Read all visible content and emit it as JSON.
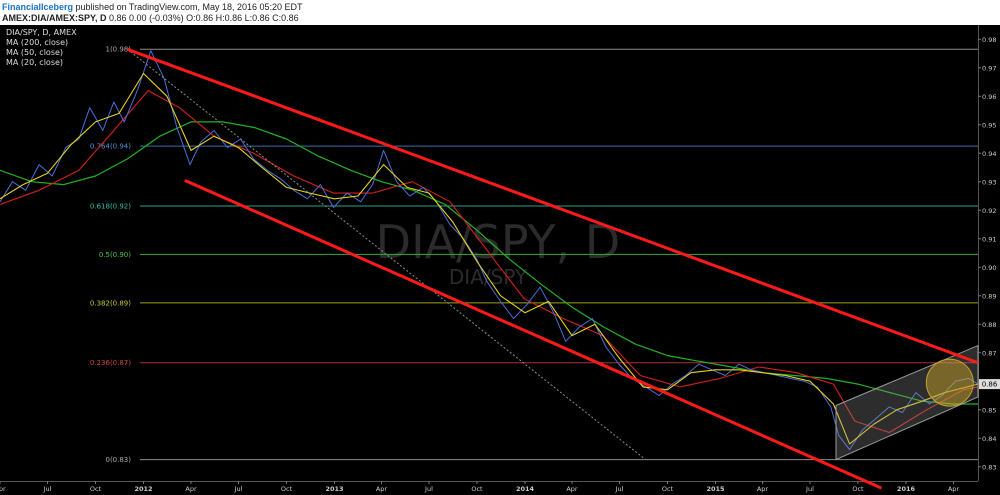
{
  "header": {
    "author": "FinancialIceberg",
    "published": "published on TradingView.com, May 18, 2016 05:20 EDT",
    "symbol": "AMEX:DIA/AMEX:SPY, D",
    "ohlc": "0.86 0.00 (-0.03%) O:0.86 H:0.86 L:0.86 C:0.86"
  },
  "legend": {
    "symbol_line": "DIA/SPY, D, AMEX",
    "ma200": "MA (200, close)",
    "ma50": "MA (50, close)",
    "ma20": "MA (20, close)"
  },
  "watermark": {
    "main": "DIA/SPY, D",
    "sub": "DIA/SPY"
  },
  "last_price_badge": "0.86",
  "colors": {
    "background": "#000000",
    "price": "#4a6fd8",
    "ma200": "#22b322",
    "ma50": "#d61f1f",
    "ma20": "#e6d21a",
    "channel": "#ff1a1a",
    "fib_0": "#8c8c8c",
    "fib_0236": "#a83232",
    "fib_0382": "#9aa21e",
    "fib_05": "#38a838",
    "fib_0618": "#2aa08a",
    "fib_0764": "#3a6ea8",
    "fib_1": "#8c8c8c"
  },
  "chart_data": {
    "type": "line",
    "y_axis": {
      "range": [
        0.825,
        0.985
      ],
      "ticks": [
        "0.98",
        "0.97",
        "0.96",
        "0.95",
        "0.94",
        "0.93",
        "0.92",
        "0.91",
        "0.90",
        "0.89",
        "0.88",
        "0.87",
        "0.86",
        "0.85",
        "0.84",
        "0.83"
      ]
    },
    "x_axis": {
      "range": [
        "2011-04-01",
        "2016-05-18"
      ],
      "ticks": [
        {
          "label": "Apr",
          "date": "2011-04-01",
          "bold": false
        },
        {
          "label": "Jul",
          "date": "2011-07-01",
          "bold": false
        },
        {
          "label": "Oct",
          "date": "2011-10-01",
          "bold": false
        },
        {
          "label": "2012",
          "date": "2012-01-01",
          "bold": true
        },
        {
          "label": "Apr",
          "date": "2012-04-01",
          "bold": false
        },
        {
          "label": "Jul",
          "date": "2012-07-01",
          "bold": false
        },
        {
          "label": "Oct",
          "date": "2012-10-01",
          "bold": false
        },
        {
          "label": "2013",
          "date": "2013-01-01",
          "bold": true
        },
        {
          "label": "Apr",
          "date": "2013-04-01",
          "bold": false
        },
        {
          "label": "Jul",
          "date": "2013-07-01",
          "bold": false
        },
        {
          "label": "Oct",
          "date": "2013-10-01",
          "bold": false
        },
        {
          "label": "2014",
          "date": "2014-01-01",
          "bold": true
        },
        {
          "label": "Apr",
          "date": "2014-04-01",
          "bold": false
        },
        {
          "label": "Jul",
          "date": "2014-07-01",
          "bold": false
        },
        {
          "label": "Oct",
          "date": "2014-10-01",
          "bold": false
        },
        {
          "label": "2015",
          "date": "2015-01-01",
          "bold": true
        },
        {
          "label": "Apr",
          "date": "2015-04-01",
          "bold": false
        },
        {
          "label": "Jul",
          "date": "2015-07-01",
          "bold": false
        },
        {
          "label": "Oct",
          "date": "2015-10-01",
          "bold": false
        },
        {
          "label": "2016",
          "date": "2016-01-01",
          "bold": true
        },
        {
          "label": "Apr",
          "date": "2016-04-01",
          "bold": false
        }
      ]
    },
    "fib_levels": [
      {
        "label": "1(0.98)",
        "value": 0.9765,
        "color": "#8c8c8c",
        "labelColor": "#aaaaaa"
      },
      {
        "label": "0.764(0.94)",
        "value": 0.9425,
        "color": "#3a6ea8",
        "labelColor": "#4f8fd0"
      },
      {
        "label": "0.618(0.92)",
        "value": 0.9215,
        "color": "#2aa08a",
        "labelColor": "#34c0a4"
      },
      {
        "label": "0.5(0.90)",
        "value": 0.9045,
        "color": "#38a838",
        "labelColor": "#4cc44c"
      },
      {
        "label": "0.382(0.89)",
        "value": 0.8875,
        "color": "#9aa21e",
        "labelColor": "#c4cc2a"
      },
      {
        "label": "0.236(0.87)",
        "value": 0.8665,
        "color": "#a83232",
        "labelColor": "#d04646"
      },
      {
        "label": "0(0.83)",
        "value": 0.8325,
        "color": "#8c8c8c",
        "labelColor": "#aaaaaa"
      }
    ],
    "series": [
      {
        "name": "DIA/SPY",
        "key": "price",
        "x": [
          "2011-04-01",
          "2011-04-25",
          "2011-05-20",
          "2011-06-15",
          "2011-07-10",
          "2011-08-05",
          "2011-08-30",
          "2011-09-20",
          "2011-10-15",
          "2011-11-05",
          "2011-11-25",
          "2011-12-20",
          "2012-01-15",
          "2012-02-10",
          "2012-03-05",
          "2012-03-30",
          "2012-04-20",
          "2012-05-15",
          "2012-06-10",
          "2012-07-05",
          "2012-07-30",
          "2012-08-25",
          "2012-09-20",
          "2012-10-15",
          "2012-11-10",
          "2012-12-05",
          "2012-12-30",
          "2013-01-25",
          "2013-02-20",
          "2013-03-15",
          "2013-04-05",
          "2013-04-30",
          "2013-05-25",
          "2013-06-20",
          "2013-07-15",
          "2013-08-10",
          "2013-09-05",
          "2013-09-30",
          "2013-10-20",
          "2013-11-15",
          "2013-12-10",
          "2014-01-05",
          "2014-01-30",
          "2014-02-25",
          "2014-03-20",
          "2014-04-15",
          "2014-05-10",
          "2014-06-05",
          "2014-06-30",
          "2014-07-25",
          "2014-08-20",
          "2014-09-15",
          "2014-10-10",
          "2014-11-05",
          "2014-11-30",
          "2014-12-25",
          "2015-01-20",
          "2015-02-15",
          "2015-03-10",
          "2015-04-05",
          "2015-04-30",
          "2015-05-25",
          "2015-06-20",
          "2015-07-15",
          "2015-08-10",
          "2015-08-25",
          "2015-09-15",
          "2015-10-10",
          "2015-11-05",
          "2015-11-30",
          "2015-12-25",
          "2016-01-20",
          "2016-02-15",
          "2016-03-10",
          "2016-04-05",
          "2016-04-30",
          "2016-05-18"
        ],
        "values": [
          0.923,
          0.93,
          0.927,
          0.936,
          0.932,
          0.942,
          0.945,
          0.956,
          0.948,
          0.958,
          0.951,
          0.962,
          0.976,
          0.966,
          0.949,
          0.936,
          0.944,
          0.948,
          0.942,
          0.945,
          0.938,
          0.934,
          0.931,
          0.927,
          0.924,
          0.929,
          0.921,
          0.926,
          0.923,
          0.929,
          0.941,
          0.93,
          0.925,
          0.928,
          0.923,
          0.915,
          0.91,
          0.903,
          0.895,
          0.888,
          0.882,
          0.887,
          0.893,
          0.884,
          0.874,
          0.879,
          0.882,
          0.872,
          0.866,
          0.861,
          0.858,
          0.855,
          0.859,
          0.862,
          0.866,
          0.864,
          0.862,
          0.866,
          0.864,
          0.863,
          0.862,
          0.861,
          0.86,
          0.858,
          0.851,
          0.841,
          0.836,
          0.843,
          0.847,
          0.851,
          0.849,
          0.856,
          0.852,
          0.855,
          0.86,
          0.861,
          0.859
        ]
      },
      {
        "name": "MA (200, close)",
        "key": "ma200",
        "x": [
          "2011-04-01",
          "2011-06-01",
          "2011-08-01",
          "2011-10-01",
          "2011-12-01",
          "2012-02-01",
          "2012-04-01",
          "2012-06-01",
          "2012-08-01",
          "2012-10-01",
          "2012-12-01",
          "2013-02-01",
          "2013-04-01",
          "2013-06-01",
          "2013-08-01",
          "2013-10-01",
          "2013-12-01",
          "2014-02-01",
          "2014-04-01",
          "2014-06-01",
          "2014-08-01",
          "2014-10-01",
          "2014-12-01",
          "2015-02-01",
          "2015-04-01",
          "2015-06-01",
          "2015-08-01",
          "2015-10-01",
          "2015-12-01",
          "2016-02-01",
          "2016-04-01",
          "2016-05-18"
        ],
        "values": [
          0.934,
          0.93,
          0.929,
          0.932,
          0.938,
          0.946,
          0.951,
          0.951,
          0.949,
          0.945,
          0.939,
          0.934,
          0.93,
          0.927,
          0.922,
          0.913,
          0.903,
          0.894,
          0.886,
          0.879,
          0.873,
          0.869,
          0.867,
          0.865,
          0.863,
          0.862,
          0.861,
          0.859,
          0.856,
          0.853,
          0.852,
          0.852
        ]
      },
      {
        "name": "MA (50, close)",
        "key": "ma50",
        "x": [
          "2011-04-01",
          "2011-06-15",
          "2011-08-30",
          "2011-11-05",
          "2012-01-10",
          "2012-03-10",
          "2012-05-15",
          "2012-07-30",
          "2012-10-15",
          "2012-12-30",
          "2013-03-15",
          "2013-05-30",
          "2013-08-10",
          "2013-10-20",
          "2013-12-30",
          "2014-03-15",
          "2014-05-30",
          "2014-08-10",
          "2014-10-25",
          "2015-01-10",
          "2015-03-25",
          "2015-06-05",
          "2015-08-15",
          "2015-09-25",
          "2015-11-30",
          "2016-02-10",
          "2016-04-20",
          "2016-05-18"
        ],
        "values": [
          0.922,
          0.927,
          0.934,
          0.948,
          0.962,
          0.956,
          0.946,
          0.94,
          0.932,
          0.926,
          0.926,
          0.93,
          0.923,
          0.906,
          0.889,
          0.882,
          0.876,
          0.862,
          0.858,
          0.861,
          0.865,
          0.863,
          0.859,
          0.846,
          0.842,
          0.85,
          0.857,
          0.858
        ]
      },
      {
        "name": "MA (20, close)",
        "key": "ma20",
        "x": [
          "2011-04-01",
          "2011-05-15",
          "2011-07-01",
          "2011-08-15",
          "2011-10-01",
          "2011-11-15",
          "2012-01-01",
          "2012-02-15",
          "2012-04-01",
          "2012-05-15",
          "2012-07-01",
          "2012-08-15",
          "2012-10-01",
          "2012-11-15",
          "2013-01-01",
          "2013-02-15",
          "2013-04-05",
          "2013-05-20",
          "2013-07-01",
          "2013-08-15",
          "2013-10-01",
          "2013-11-15",
          "2014-01-01",
          "2014-02-15",
          "2014-04-01",
          "2014-05-15",
          "2014-07-01",
          "2014-08-15",
          "2014-10-01",
          "2014-11-15",
          "2015-01-01",
          "2015-02-15",
          "2015-04-01",
          "2015-05-15",
          "2015-07-01",
          "2015-08-15",
          "2015-09-15",
          "2015-11-01",
          "2015-12-15",
          "2016-02-01",
          "2016-03-15",
          "2016-05-18"
        ],
        "values": [
          0.924,
          0.929,
          0.933,
          0.943,
          0.951,
          0.954,
          0.968,
          0.96,
          0.941,
          0.946,
          0.942,
          0.935,
          0.928,
          0.926,
          0.924,
          0.925,
          0.936,
          0.928,
          0.926,
          0.916,
          0.902,
          0.89,
          0.884,
          0.888,
          0.876,
          0.88,
          0.868,
          0.858,
          0.857,
          0.863,
          0.864,
          0.864,
          0.863,
          0.862,
          0.86,
          0.852,
          0.838,
          0.845,
          0.85,
          0.853,
          0.856,
          0.859
        ]
      }
    ],
    "drawings": {
      "channel_upper": [
        [
          "2011-12-01",
          0.9765
        ],
        [
          "2016-05-18",
          0.8665
        ]
      ],
      "channel_lower": [
        [
          "2012-03-20",
          0.9305
        ],
        [
          "2015-11-15",
          0.8225
        ]
      ],
      "fib_trend_dotted": [
        [
          "2011-12-01",
          0.9765
        ],
        [
          "2014-08-20",
          0.8325
        ]
      ],
      "rising_channel": {
        "upper": [
          [
            "2015-08-20",
            0.8515
          ],
          [
            "2016-05-18",
            0.8725
          ]
        ],
        "lower": [
          [
            "2015-08-20",
            0.8325
          ],
          [
            "2016-05-18",
            0.8545
          ]
        ]
      },
      "highlight_circle": {
        "center": [
          "2016-03-25",
          0.8595
        ],
        "r_days": 45
      }
    }
  }
}
